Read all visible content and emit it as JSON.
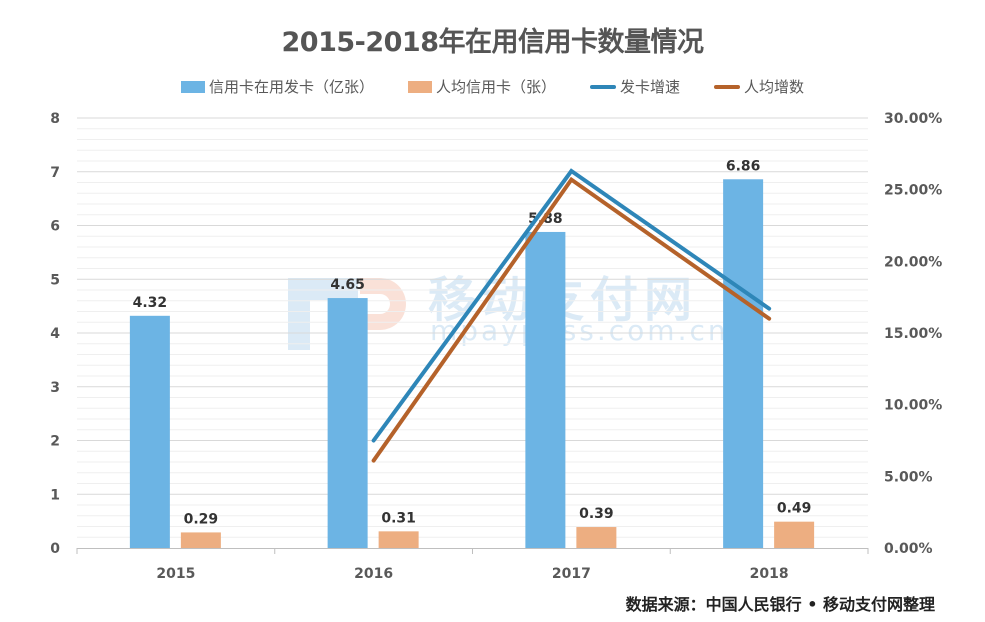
{
  "title": "2015-2018年在用信用卡数量情况",
  "legend": [
    {
      "label": "信用卡在用发卡（亿张）",
      "type": "bar",
      "color": "#6CB4E4"
    },
    {
      "label": "人均信用卡（张）",
      "type": "bar",
      "color": "#EDAE81"
    },
    {
      "label": "发卡增速",
      "type": "line",
      "color": "#2E86B8"
    },
    {
      "label": "人均增数",
      "type": "line",
      "color": "#B5622A"
    }
  ],
  "source": "数据来源：中国人民银行 • 移动支付网整理",
  "watermark": {
    "brand": "移动支付网",
    "url": "mpaypass.com.cn"
  },
  "colors": {
    "bar1": "#6CB4E4",
    "bar2": "#EDAE81",
    "line1": "#2E86B8",
    "line2": "#B5622A",
    "grid_major": "#D9D9D9",
    "grid_minor": "#EFEFEF",
    "axis_text": "#595959"
  },
  "chart_data": {
    "type": "bar",
    "title": "2015-2018年在用信用卡数量情况",
    "categories": [
      "2015",
      "2016",
      "2017",
      "2018"
    ],
    "series": [
      {
        "name": "信用卡在用发卡（亿张）",
        "type": "bar",
        "axis": "left",
        "values": [
          4.32,
          4.65,
          5.88,
          6.86
        ],
        "labels": [
          "4.32",
          "4.65",
          "5.88",
          "6.86"
        ]
      },
      {
        "name": "人均信用卡（张）",
        "type": "bar",
        "axis": "left",
        "values": [
          0.29,
          0.31,
          0.39,
          0.49
        ],
        "labels": [
          "0.29",
          "0.31",
          "0.39",
          "0.49"
        ]
      },
      {
        "name": "发卡增速",
        "type": "line",
        "axis": "right",
        "values": [
          null,
          7.5,
          26.3,
          16.7
        ]
      },
      {
        "name": "人均增数",
        "type": "line",
        "axis": "right",
        "values": [
          null,
          6.1,
          25.7,
          16.0
        ]
      }
    ],
    "left_axis": {
      "ticks": [
        "0",
        "1",
        "2",
        "3",
        "4",
        "5",
        "6",
        "7",
        "8"
      ],
      "ylim": [
        0,
        8
      ]
    },
    "right_axis": {
      "ticks": [
        "0.00%",
        "5.00%",
        "10.00%",
        "15.00%",
        "20.00%",
        "25.00%",
        "30.00%"
      ],
      "ylim": [
        0,
        30
      ]
    },
    "xlabel": "",
    "ylabel": "",
    "grid": true,
    "legend_position": "top"
  }
}
